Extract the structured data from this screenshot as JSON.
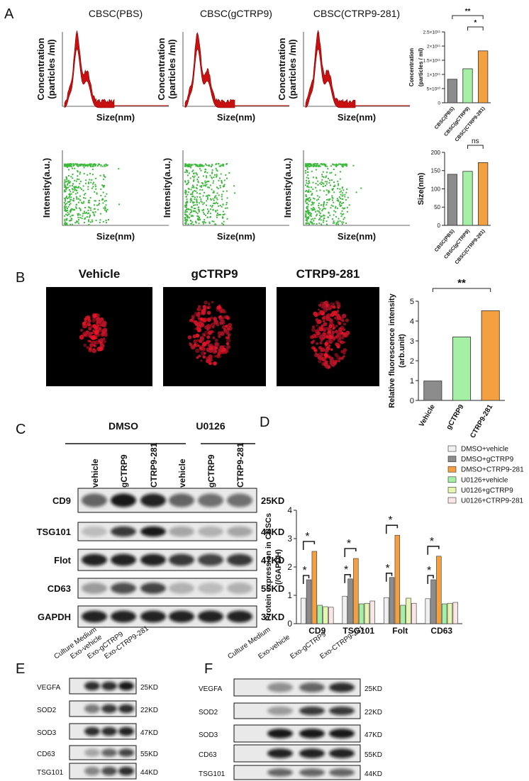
{
  "panel_labels": [
    "A",
    "B",
    "C",
    "D",
    "E",
    "F"
  ],
  "nta": {
    "titles": [
      "CBSC(PBS)",
      "CBSC(gCTRP9)",
      "CBSC(CTRP9-281)"
    ],
    "concentration_label": [
      "Concentration",
      "(particles /ml)"
    ],
    "intensity_label": "Intensity(a.u.)",
    "size_label": "Size(nm)"
  },
  "image_labels": [
    "Vehicle",
    "gCTRP9",
    "CTRP9-281"
  ],
  "chart_data": [
    {
      "type": "bar",
      "categories": [
        "CBSC(PBS)",
        "CBSC(gCTRP9)",
        "CBSC(CTRP9-281)"
      ],
      "values": [
        83000000000,
        120000000000,
        183000000000
      ],
      "colors": [
        "#8c8c8c",
        "#a6f0a6",
        "#f5a040"
      ],
      "ylabel": [
        "Concentration",
        "(particles / ml)"
      ],
      "ylim": [
        0,
        250000000000
      ],
      "yticks": [
        0,
        {
          "value": 50000000000,
          "label": "5×10¹⁰"
        },
        {
          "value": 100000000000,
          "label": "1×10¹¹"
        },
        {
          "value": 150000000000,
          "label": "1.5×10¹¹"
        },
        {
          "value": 200000000000,
          "label": "2×10¹¹"
        },
        {
          "value": 250000000000,
          "label": "2.5×10¹¹"
        }
      ],
      "annotations": [
        "**",
        "*"
      ]
    },
    {
      "type": "bar",
      "categories": [
        "CBSC(PBS)",
        "CBSC(gCTRP9)",
        "CBSC(CTRP9-281)"
      ],
      "values": [
        140,
        148,
        172
      ],
      "colors": [
        "#8c8c8c",
        "#a6f0a6",
        "#f5a040"
      ],
      "ylabel": [
        "Size(nm)"
      ],
      "ylim": [
        0,
        200
      ],
      "yticks": [
        0,
        50,
        100,
        150,
        200
      ],
      "annotations": [
        "ns"
      ]
    },
    {
      "type": "bar",
      "categories": [
        "Vehicle",
        "gCTRP9",
        "CTRP9-281"
      ],
      "values": [
        0.98,
        3.2,
        4.52
      ],
      "colors": [
        "#8c8c8c",
        "#a6f0a6",
        "#f5a040"
      ],
      "ylabel": [
        "Relative fluorescence intensity",
        "(arb.unit)"
      ],
      "ylim": [
        0,
        5
      ],
      "yticks": [
        0,
        1,
        2,
        3,
        4,
        5
      ],
      "annotations": [
        "**"
      ]
    },
    {
      "type": "bar",
      "categories": [
        "CD9",
        "TSG101",
        "Folt",
        "CD63"
      ],
      "series": [
        {
          "name": "DMSO+vehicle",
          "color": "#f0f0f0",
          "values": [
            0.9,
            0.97,
            0.92,
            0.88
          ]
        },
        {
          "name": "DMSO+gCTRP9",
          "color": "#8c8c8c",
          "values": [
            1.55,
            1.58,
            1.63,
            1.55
          ]
        },
        {
          "name": "DMSO+CTRP9-281",
          "color": "#f5a040",
          "values": [
            2.55,
            2.3,
            3.12,
            2.38
          ]
        },
        {
          "name": "U0126+vehicle",
          "color": "#a6f0a6",
          "values": [
            0.65,
            0.7,
            0.65,
            0.7
          ]
        },
        {
          "name": "U0126+gCTRP9",
          "color": "#e6f5b0",
          "values": [
            0.6,
            0.72,
            0.9,
            0.72
          ]
        },
        {
          "name": "U0126+CTRP9-281",
          "color": "#fbe6e6",
          "values": [
            0.58,
            0.8,
            0.72,
            0.75
          ]
        }
      ],
      "ylabel": [
        "Protein expression in CBSCs",
        "(/GAPDH)"
      ],
      "ylim": [
        0,
        4
      ],
      "yticks": [
        0,
        1,
        2,
        3,
        4
      ],
      "annotations": [
        "*"
      ]
    }
  ],
  "blot_c": {
    "groups": [
      "DMSO",
      "U0126"
    ],
    "lanes": [
      "vehicle",
      "gCTRP9",
      "CTRP9-281",
      "vehicle",
      "gCTRP9",
      "CTRP9-281"
    ],
    "rows": [
      {
        "label": "CD9",
        "size": "25KD"
      },
      {
        "label": "TSG101",
        "size": "44KD"
      },
      {
        "label": "Flot",
        "size": "47KD"
      },
      {
        "label": "CD63",
        "size": "55KD"
      },
      {
        "label": "GAPDH",
        "size": "37KD"
      }
    ]
  },
  "blot_e": {
    "lanes": [
      "Culture Medium",
      "Exo-vehicle",
      "Exo-gCTRP9",
      "Exo-CTRP9-281"
    ],
    "rows": [
      {
        "label": "VEGFA",
        "size": "25KD"
      },
      {
        "label": "SOD2",
        "size": "22KD"
      },
      {
        "label": "SOD3",
        "size": "47KD"
      },
      {
        "label": "CD63",
        "size": "55KD"
      },
      {
        "label": "TSG101",
        "size": "44KD"
      }
    ]
  },
  "blot_f": {
    "lanes": [
      "Culture Medium",
      "Exo-vehicle",
      "Exo-gCTRP9",
      "Exo-CTRP9-281"
    ],
    "rows": [
      {
        "label": "VEGFA",
        "size": "25KD"
      },
      {
        "label": "SOD2",
        "size": "22KD"
      },
      {
        "label": "SOD3",
        "size": "47KD"
      },
      {
        "label": "CD63",
        "size": "55KD"
      },
      {
        "label": "TSG101",
        "size": "44KD"
      }
    ]
  }
}
